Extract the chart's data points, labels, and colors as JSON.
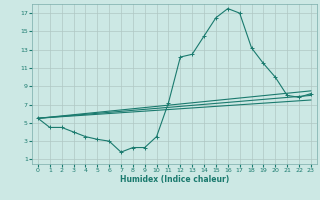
{
  "xlabel": "Humidex (Indice chaleur)",
  "bg_color": "#cce8e4",
  "grid_color": "#b0c8c4",
  "line_color": "#1a7a6e",
  "xlim": [
    -0.5,
    23.5
  ],
  "ylim": [
    0.5,
    18
  ],
  "xticks": [
    0,
    1,
    2,
    3,
    4,
    5,
    6,
    7,
    8,
    9,
    10,
    11,
    12,
    13,
    14,
    15,
    16,
    17,
    18,
    19,
    20,
    21,
    22,
    23
  ],
  "yticks": [
    1,
    3,
    5,
    7,
    9,
    11,
    13,
    15,
    17
  ],
  "series_main": {
    "x": [
      0,
      1,
      2,
      3,
      4,
      5,
      6,
      7,
      8,
      9,
      10,
      11,
      12,
      13,
      14,
      15,
      16,
      17,
      18,
      19,
      20,
      21,
      22,
      23
    ],
    "y": [
      5.5,
      4.5,
      4.5,
      4.0,
      3.5,
      3.2,
      3.0,
      1.8,
      2.3,
      2.3,
      3.5,
      7.2,
      12.2,
      12.5,
      14.5,
      16.5,
      17.5,
      17.0,
      13.2,
      11.5,
      10.0,
      8.0,
      7.8,
      8.2
    ]
  },
  "series_lines": [
    {
      "x": [
        0,
        23
      ],
      "y": [
        5.5,
        8.5
      ]
    },
    {
      "x": [
        0,
        23
      ],
      "y": [
        5.5,
        8.0
      ]
    },
    {
      "x": [
        0,
        23
      ],
      "y": [
        5.5,
        7.5
      ]
    }
  ]
}
